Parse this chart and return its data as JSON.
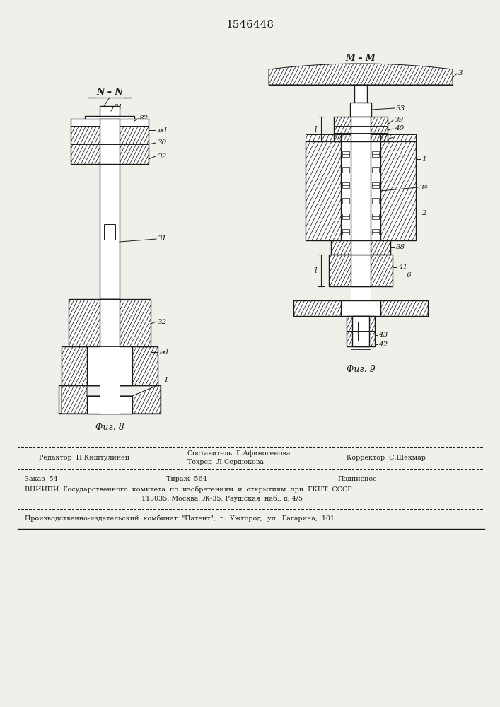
{
  "title": "1546448",
  "background_color": "#f0f0eb",
  "fig8_label": "Фиг. 8",
  "fig9_label": "Фиг. 9",
  "fig8_section": "N – N",
  "fig9_section": "M – M",
  "editor_line": "Редактор  Н.Киштулинец",
  "composer_line": "Составитель  Г.Афиногенова",
  "techred_line": "Техред  Л.Сердюкова",
  "corrector_line": "Корректор  С.Шекмар",
  "order_line": "Заказ  54",
  "tirazh_line": "Тираж  564",
  "podpisnoe_line": "Подписное",
  "vniipii_line": "ВНИИПИ  Государственного  комитета  по  изобретениям  и  открытиям  при  ГКНТ  СССР",
  "address_line": "113035, Москва, Ж-35, Раушская  наб., д. 4/5",
  "plant_line": "Производственно-издательский  комбинат  \"Патент\",  г.  Ужгород,  ул.  Гагарина,  101"
}
